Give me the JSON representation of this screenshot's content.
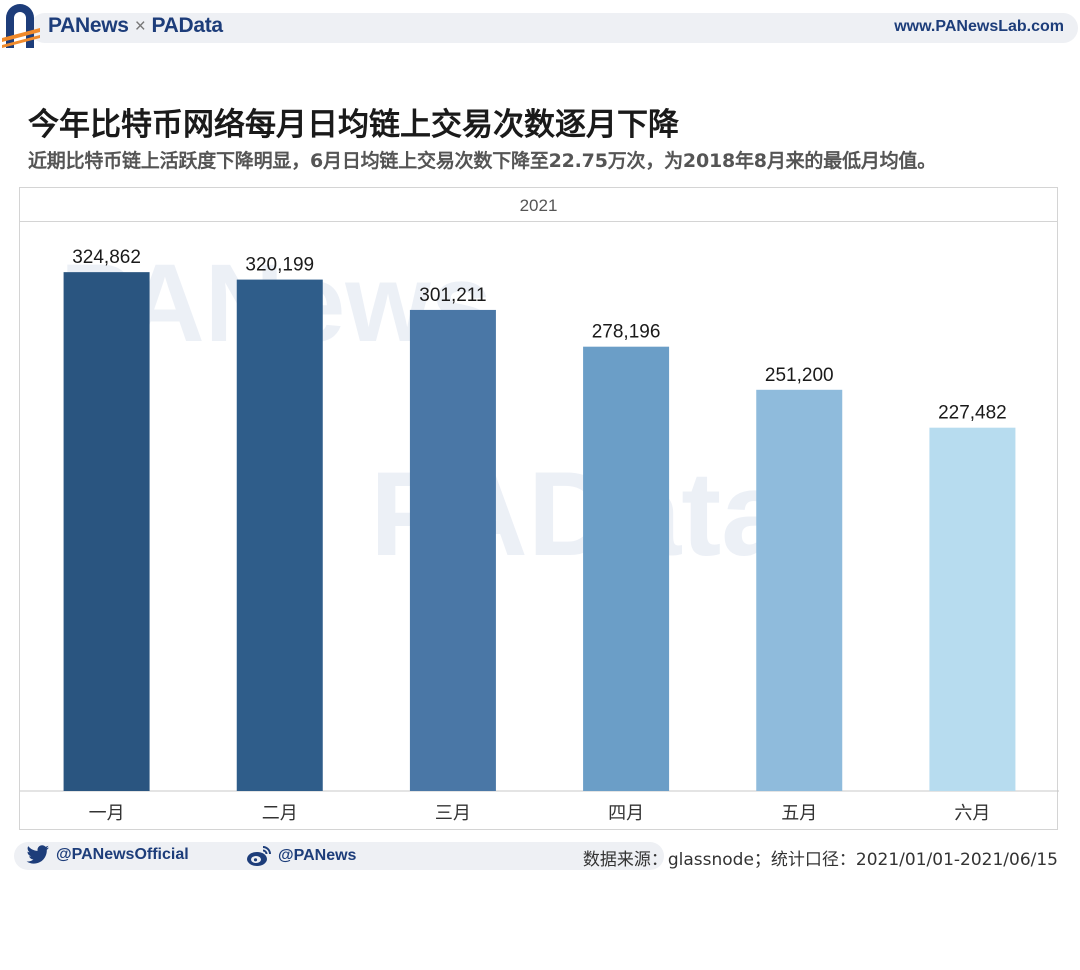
{
  "header": {
    "brand_left": "PANews",
    "brand_right": "PAData",
    "separator": "×",
    "website": "www.PANewsLab.com"
  },
  "title": "今年比特币网络每月日均链上交易次数逐月下降",
  "subtitle": "近期比特币链上活跃度下降明显，6月日均链上交易次数下降至22.75万次，为2018年8月来的最低月均值。",
  "watermark": {
    "primary": "PAData",
    "secondary": "PANews"
  },
  "colors": {
    "brand": "#1d3d7a",
    "bars": [
      "#2a5580",
      "#2f5d8a",
      "#4a77a6",
      "#6b9ec7",
      "#8fbbdc",
      "#b7dcef"
    ]
  },
  "chart_data": {
    "type": "bar",
    "panel_title": "2021",
    "categories": [
      "一月",
      "二月",
      "三月",
      "四月",
      "五月",
      "六月"
    ],
    "values": [
      324862,
      320199,
      301211,
      278196,
      251200,
      227482
    ],
    "value_labels": [
      "324,862",
      "320,199",
      "301,211",
      "278,196",
      "251,200",
      "227,482"
    ],
    "xlabel": "",
    "ylabel": "",
    "ylim": [
      0,
      350000
    ],
    "grid": false,
    "legend": "none"
  },
  "footer": {
    "twitter": "@PANewsOfficial",
    "weibo": "@PANews",
    "source": "数据来源：glassnode；统计口径：2021/01/01-2021/06/15"
  }
}
